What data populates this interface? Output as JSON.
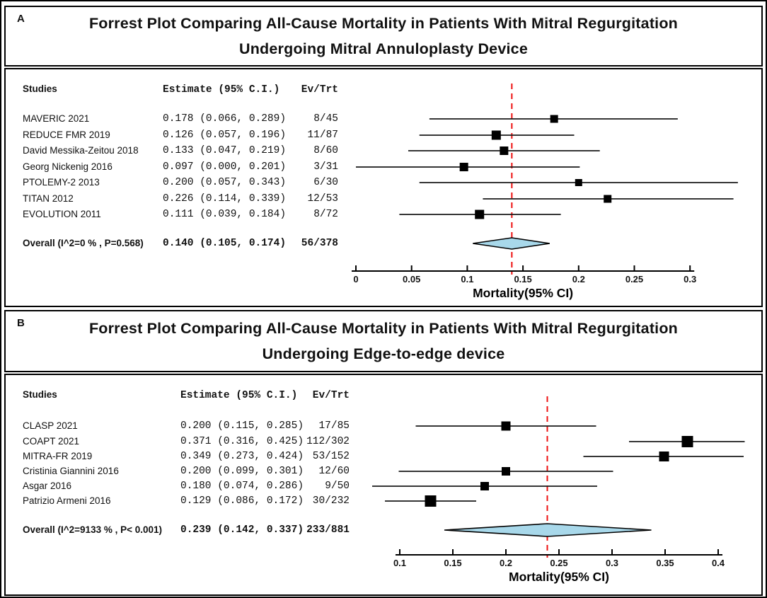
{
  "figure": {
    "description": "Two stacked forest plots comparing all-cause mortality in mitral regurgitation patients",
    "colors": {
      "reference_line": "#ee1111",
      "diamond_fill": "#a8d8ea",
      "diamond_stroke": "#000000",
      "marker_color": "#000000",
      "ci_line_color": "#1a1a1a",
      "axis_color": "#000000",
      "border_color": "#000000"
    }
  },
  "chart_data": [
    {
      "type": "forest",
      "panel_label": "A",
      "title_line1": "Forrest Plot Comparing All-Cause Mortality in Patients With Mitral Regurgitation",
      "title_line2": "Undergoing Mitral Annuloplasty Device",
      "columns": {
        "studies": "Studies",
        "estimate": "Estimate (95% C.I.)",
        "ev_trt": "Ev/Trt"
      },
      "xlabel": "Mortality(95% CI)",
      "xlim": [
        0,
        0.3
      ],
      "axis_ticks": [
        0,
        0.05,
        0.1,
        0.15,
        0.2,
        0.25,
        0.3
      ],
      "tick_labels": [
        "0",
        "0.05",
        "0.1",
        "0.15",
        "0.2",
        "0.25",
        "0.3"
      ],
      "reference_line": 0.14,
      "studies": [
        {
          "name": "MAVERIC 2021",
          "estimate": 0.178,
          "ci_low": 0.066,
          "ci_high": 0.289,
          "estimate_text": "0.178 (0.066, 0.289)",
          "ev_trt": "8/45",
          "marker_size": 11
        },
        {
          "name": "REDUCE FMR 2019",
          "estimate": 0.126,
          "ci_low": 0.057,
          "ci_high": 0.196,
          "estimate_text": "0.126 (0.057, 0.196)",
          "ev_trt": "11/87",
          "marker_size": 13
        },
        {
          "name": "David Messika-Zeitou 2018",
          "estimate": 0.133,
          "ci_low": 0.047,
          "ci_high": 0.219,
          "estimate_text": "0.133 (0.047, 0.219)",
          "ev_trt": "8/60",
          "marker_size": 12
        },
        {
          "name": "Georg Nickenig 2016",
          "estimate": 0.097,
          "ci_low": 0.0,
          "ci_high": 0.201,
          "estimate_text": "0.097 (0.000, 0.201)",
          "ev_trt": "3/31",
          "marker_size": 12
        },
        {
          "name": "PTOLEMY-2 2013",
          "estimate": 0.2,
          "ci_low": 0.057,
          "ci_high": 0.343,
          "estimate_text": "0.200 (0.057, 0.343)",
          "ev_trt": "6/30",
          "marker_size": 10
        },
        {
          "name": "TITAN 2012",
          "estimate": 0.226,
          "ci_low": 0.114,
          "ci_high": 0.339,
          "estimate_text": "0.226 (0.114, 0.339)",
          "ev_trt": "12/53",
          "marker_size": 11
        },
        {
          "name": "EVOLUTION 2011",
          "estimate": 0.111,
          "ci_low": 0.039,
          "ci_high": 0.184,
          "estimate_text": "0.111 (0.039, 0.184)",
          "ev_trt": "8/72",
          "marker_size": 13
        }
      ],
      "overall": {
        "label": "Overall (I^2=0 % , P=0.568)",
        "estimate": 0.14,
        "ci_low": 0.105,
        "ci_high": 0.174,
        "estimate_text": "0.140 (0.105, 0.174)",
        "ev_trt": "56/378"
      }
    },
    {
      "type": "forest",
      "panel_label": "B",
      "title_line1": "Forrest Plot Comparing All-Cause Mortality in Patients With Mitral Regurgitation",
      "title_line2": "Undergoing Edge-to-edge device",
      "columns": {
        "studies": "Studies",
        "estimate": "Estimate (95% C.I.)",
        "ev_trt": "Ev/Trt"
      },
      "xlabel": "Mortality(95% CI)",
      "xlim": [
        0.1,
        0.4
      ],
      "axis_ticks": [
        0.1,
        0.15,
        0.2,
        0.25,
        0.3,
        0.35,
        0.4
      ],
      "tick_labels": [
        "0.1",
        "0.15",
        "0.2",
        "0.25",
        "0.3",
        "0.35",
        "0.4"
      ],
      "reference_line": 0.239,
      "studies": [
        {
          "name": "CLASP 2021",
          "estimate": 0.2,
          "ci_low": 0.115,
          "ci_high": 0.285,
          "estimate_text": "0.200 (0.115, 0.285)",
          "ev_trt": "17/85",
          "marker_size": 13
        },
        {
          "name": "COAPT 2021",
          "estimate": 0.371,
          "ci_low": 0.316,
          "ci_high": 0.425,
          "estimate_text": "0.371 (0.316, 0.425)",
          "ev_trt": "112/302",
          "marker_size": 16
        },
        {
          "name": "MITRA-FR 2019",
          "estimate": 0.349,
          "ci_low": 0.273,
          "ci_high": 0.424,
          "estimate_text": "0.349 (0.273, 0.424)",
          "ev_trt": "53/152",
          "marker_size": 14
        },
        {
          "name": "Cristinia Giannini 2016",
          "estimate": 0.2,
          "ci_low": 0.099,
          "ci_high": 0.301,
          "estimate_text": "0.200 (0.099, 0.301)",
          "ev_trt": "12/60",
          "marker_size": 12
        },
        {
          "name": "Asgar 2016",
          "estimate": 0.18,
          "ci_low": 0.074,
          "ci_high": 0.286,
          "estimate_text": "0.180 (0.074, 0.286)",
          "ev_trt": "9/50",
          "marker_size": 12
        },
        {
          "name": "Patrizio Armeni 2016",
          "estimate": 0.129,
          "ci_low": 0.086,
          "ci_high": 0.172,
          "estimate_text": "0.129 (0.086, 0.172)",
          "ev_trt": "30/232",
          "marker_size": 16
        }
      ],
      "overall": {
        "label": "Overall (I^2=9133 % , P< 0.001)",
        "estimate": 0.239,
        "ci_low": 0.142,
        "ci_high": 0.337,
        "estimate_text": "0.239 (0.142, 0.337)",
        "ev_trt": "233/881"
      }
    }
  ]
}
